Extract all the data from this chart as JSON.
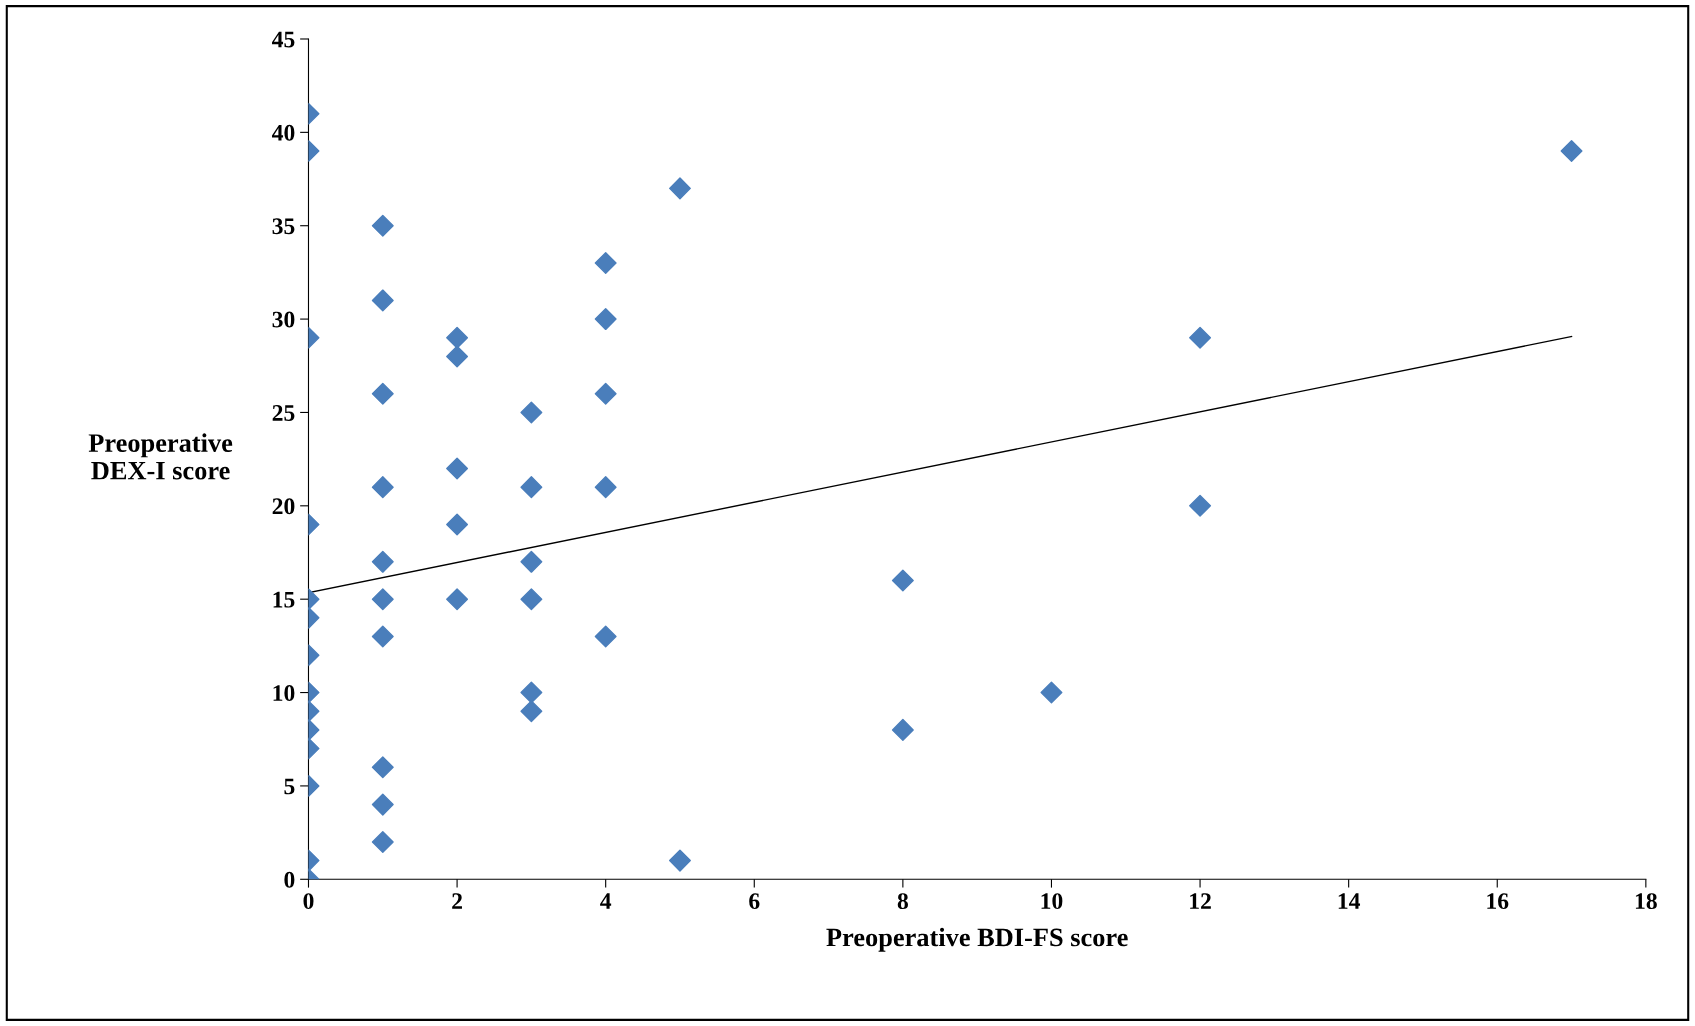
{
  "chart_data": {
    "type": "scatter",
    "xlabel": "Preoperative BDI-FS score",
    "ylabel": "Preoperative\nDEX-I score",
    "xlim": [
      0,
      18
    ],
    "xticks": [
      0,
      2,
      4,
      6,
      8,
      10,
      12,
      14,
      16,
      18
    ],
    "ylim": [
      0,
      45
    ],
    "yticks": [
      0,
      5,
      10,
      15,
      20,
      25,
      30,
      35,
      40,
      45
    ],
    "grid": false,
    "legend": false,
    "series": [
      {
        "color": "#4a7ebb",
        "marker": "diamond",
        "x": [
          0,
          0,
          0,
          0,
          0,
          0,
          0,
          0,
          0,
          0,
          0,
          0,
          0,
          0,
          1,
          1,
          1,
          1,
          1,
          1,
          1,
          1,
          1,
          1,
          2,
          2,
          2,
          2,
          2,
          3,
          3,
          3,
          3,
          3,
          3,
          4,
          4,
          4,
          4,
          4,
          5,
          5,
          8,
          8,
          10,
          12,
          12,
          17
        ],
        "values": [
          41,
          39,
          29,
          19,
          15,
          14,
          12,
          10,
          9,
          8,
          7,
          5,
          1,
          0,
          35,
          31,
          26,
          21,
          17,
          15,
          13,
          6,
          4,
          2,
          29,
          28,
          22,
          19,
          15,
          25,
          21,
          17,
          15,
          10,
          9,
          33,
          30,
          26,
          21,
          13,
          37,
          1,
          16,
          8,
          10,
          29,
          20,
          39
        ]
      },
      {
        "type": "line",
        "color": "#000000",
        "marker": "none",
        "line_style": "solid",
        "x": [
          0,
          17
        ],
        "values": [
          15.35,
          29.07
        ]
      }
    ]
  }
}
